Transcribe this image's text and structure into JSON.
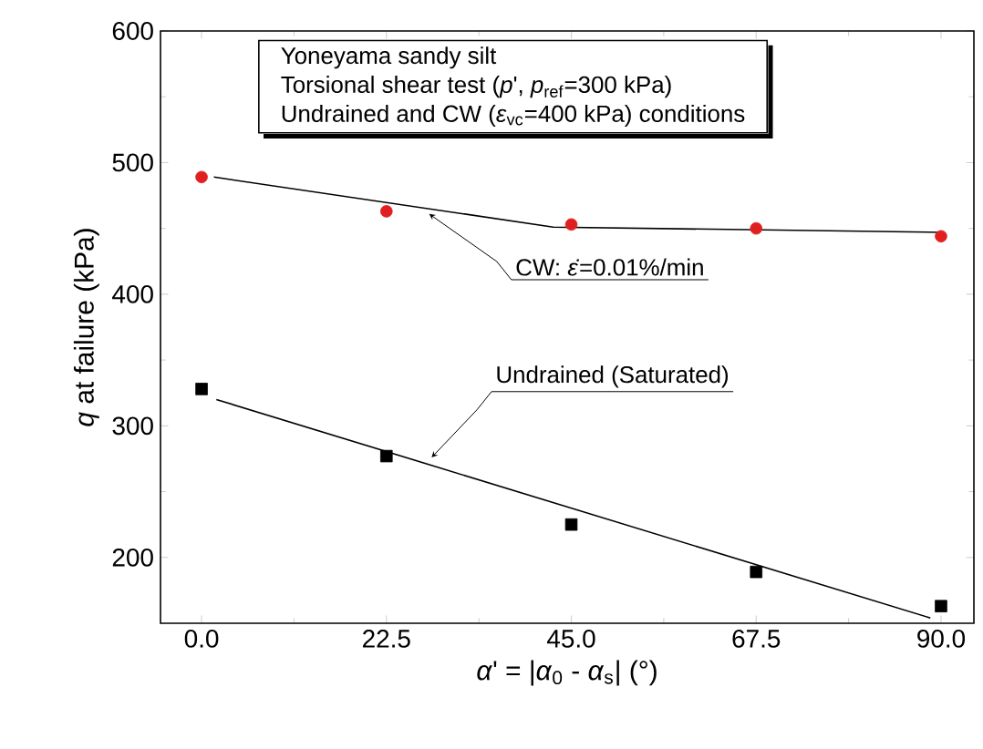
{
  "chart_data": {
    "type": "scatter",
    "xlabel": "*α*' = |*α*$_{0}$ - *α*$_{s}$|  (°)",
    "ylabel": "*q* at failure (kPa)",
    "xlim": [
      -5,
      94
    ],
    "ylim": [
      150,
      600
    ],
    "xticks": [
      {
        "value": 0,
        "label": "0.0"
      },
      {
        "value": 22.5,
        "label": "22.5"
      },
      {
        "value": 45,
        "label": "45.0"
      },
      {
        "value": 67.5,
        "label": "67.5"
      },
      {
        "value": 90,
        "label": "90.0"
      }
    ],
    "yticks": [
      200,
      300,
      400,
      500,
      600
    ],
    "grid": false,
    "series": [
      {
        "color": "#e02020",
        "marker": "circle",
        "x": [
          0,
          22.5,
          45,
          67.5,
          90
        ],
        "values": [
          489,
          463,
          453,
          450,
          444
        ]
      },
      {
        "color": "#000000",
        "marker": "square",
        "x": [
          0,
          22.5,
          45,
          67.5,
          90
        ],
        "values": [
          328,
          277,
          225,
          189,
          163
        ]
      },
      {
        "type": "line",
        "color": "#000000",
        "marker": "none",
        "x": [
          1.5,
          42.8,
          90
        ],
        "values": [
          489,
          451,
          447
        ]
      },
      {
        "type": "line",
        "color": "#000000",
        "marker": "none",
        "x": [
          1.8,
          88.7
        ],
        "values": [
          320,
          154
        ]
      }
    ],
    "annotations": [
      "Yoneyama sandy silt",
      "Torsional shear test (*p*', *p*$_{ref}$=300 kPa)",
      "Undrained and CW (*ε*$_{vc}$=400 kPa) conditions",
      {
        "text": "CW: *ε̇*=0.01%/min",
        "x": 27.7,
        "y": 461
      },
      {
        "text": "Undrained (Saturated)",
        "x": 28,
        "y": 276
      }
    ]
  }
}
